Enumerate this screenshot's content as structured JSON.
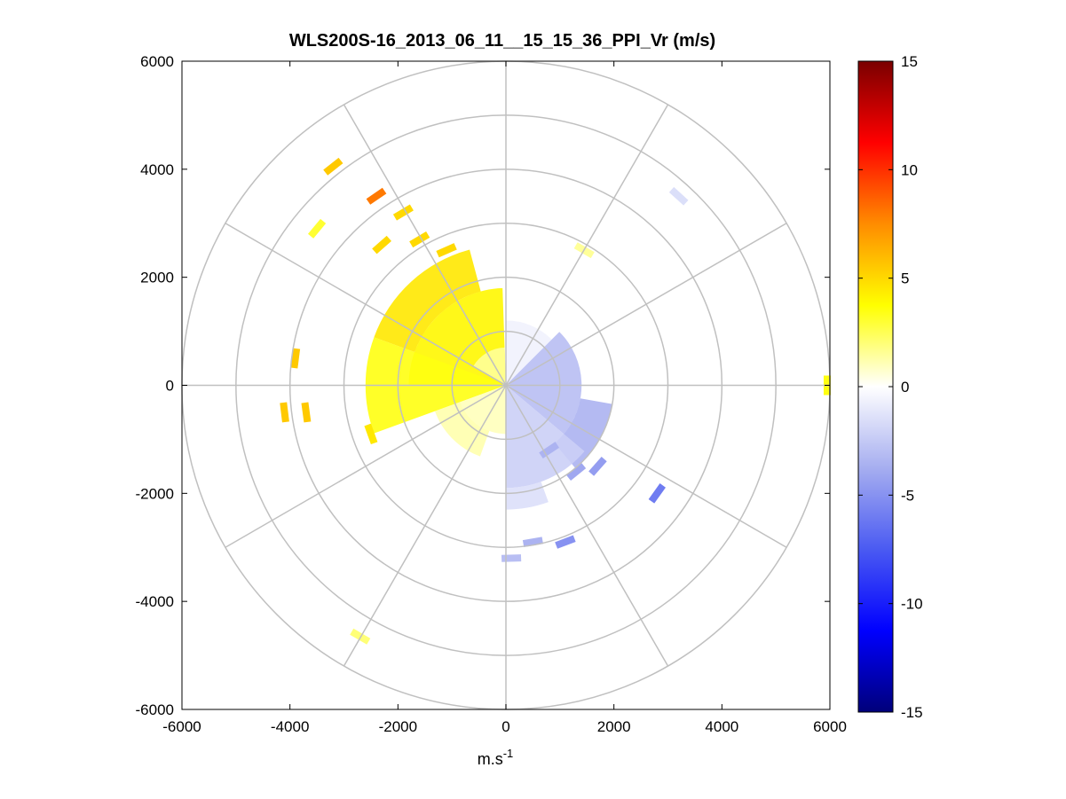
{
  "chart_data": {
    "type": "heatmap",
    "subtype": "polar-ppi",
    "title": "WLS200S-16_2013_06_11__15_15_36_PPI_Vr (m/s)",
    "xlabel": "m.s",
    "xlabel_exponent": "-1",
    "ylabel": "",
    "xlim": [
      -6000,
      6000
    ],
    "ylim": [
      -6000,
      6000
    ],
    "x_ticks": [
      "-6000",
      "-4000",
      "-2000",
      "0",
      "2000",
      "4000",
      "6000"
    ],
    "y_ticks": [
      "6000",
      "4000",
      "2000",
      "0",
      "-2000",
      "-4000",
      "-6000"
    ],
    "x_tick_values": [
      -6000,
      -4000,
      -2000,
      0,
      2000,
      4000,
      6000
    ],
    "y_tick_values": [
      6000,
      4000,
      2000,
      0,
      -2000,
      -4000,
      -6000
    ],
    "polar_grid": {
      "ring_radii": [
        1000,
        2000,
        3000,
        4000,
        5000,
        6000
      ],
      "spoke_angles_deg": [
        0,
        30,
        60,
        90,
        120,
        150,
        180,
        210,
        240,
        270,
        300,
        330
      ]
    },
    "colorbar": {
      "range": [
        -15,
        15
      ],
      "ticks": [
        "15",
        "10",
        "5",
        "0",
        "-5",
        "-10",
        "-15"
      ],
      "tick_values": [
        15,
        10,
        5,
        0,
        -5,
        -10,
        -15
      ],
      "colors": [
        "#00007a",
        "#0000ff",
        "#4a5af2",
        "#a6aef0",
        "#ffffff",
        "#ffff00",
        "#ff8c00",
        "#ff0000",
        "#7a0000"
      ]
    },
    "sectors": [
      {
        "az_start": 270,
        "az_end": 358,
        "r_min": 60,
        "r_max": 1800,
        "value": 4.0
      },
      {
        "az_start": 290,
        "az_end": 345,
        "r_min": 1800,
        "r_max": 2600,
        "value": 4.5
      },
      {
        "az_start": 250,
        "az_end": 290,
        "r_min": 60,
        "r_max": 2600,
        "value": 3.5
      },
      {
        "az_start": 300,
        "az_end": 358,
        "r_min": 60,
        "r_max": 700,
        "value": 1.5
      },
      {
        "az_start": 180,
        "az_end": 250,
        "r_min": 60,
        "r_max": 900,
        "value": 1.0
      },
      {
        "az_start": 200,
        "az_end": 250,
        "r_min": 900,
        "r_max": 1400,
        "value": 1.2
      },
      {
        "az_start": 0,
        "az_end": 45,
        "r_min": 60,
        "r_max": 1200,
        "value": -0.6
      },
      {
        "az_start": 45,
        "az_end": 130,
        "r_min": 60,
        "r_max": 1400,
        "value": -3.0
      },
      {
        "az_start": 100,
        "az_end": 140,
        "r_min": 1400,
        "r_max": 2000,
        "value": -3.5
      },
      {
        "az_start": 130,
        "az_end": 180,
        "r_min": 60,
        "r_max": 1900,
        "value": -2.2
      },
      {
        "az_start": 160,
        "az_end": 180,
        "r_min": 1900,
        "r_max": 2300,
        "value": -1.5
      }
    ],
    "patches": [
      {
        "x": -3200,
        "y": 4050,
        "value": 5.5
      },
      {
        "x": -2400,
        "y": 3500,
        "value": 8.0
      },
      {
        "x": -1900,
        "y": 3200,
        "value": 5.0
      },
      {
        "x": -3500,
        "y": 2900,
        "value": 3.0
      },
      {
        "x": -2300,
        "y": 2600,
        "value": 5.0
      },
      {
        "x": -1600,
        "y": 2700,
        "value": 5.0
      },
      {
        "x": -1100,
        "y": 2500,
        "value": 5.0
      },
      {
        "x": -3900,
        "y": 500,
        "value": 5.5
      },
      {
        "x": -4100,
        "y": -500,
        "value": 5.5
      },
      {
        "x": -3700,
        "y": -500,
        "value": 5.5
      },
      {
        "x": 5950,
        "y": 0,
        "value": 3.5
      },
      {
        "x": -2700,
        "y": -4650,
        "value": 2.0
      },
      {
        "x": 3200,
        "y": 3500,
        "value": -1.5
      },
      {
        "x": 1450,
        "y": 2500,
        "value": 1.5
      },
      {
        "x": 2800,
        "y": -2000,
        "value": -6.0
      },
      {
        "x": 1700,
        "y": -1500,
        "value": -4.5
      },
      {
        "x": 1100,
        "y": -2900,
        "value": -5.0
      },
      {
        "x": 500,
        "y": -2900,
        "value": -3.5
      },
      {
        "x": 100,
        "y": -3200,
        "value": -3.0
      },
      {
        "x": 800,
        "y": -1200,
        "value": -3.5
      },
      {
        "x": 1300,
        "y": -1600,
        "value": -4.0
      },
      {
        "x": -2500,
        "y": -900,
        "value": 4.5
      }
    ]
  }
}
